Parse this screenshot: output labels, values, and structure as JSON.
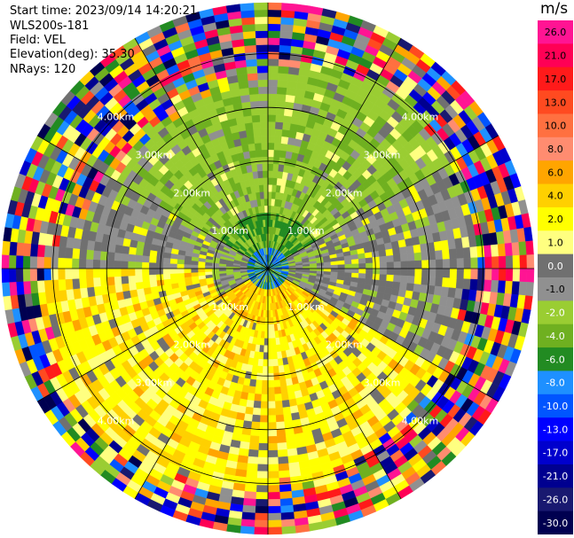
{
  "info": {
    "start_time": "Start time: 2023/09/14 14:20:21",
    "instrument": "WLS200s-181",
    "field": "Field: VEL",
    "elevation": "Elevation(deg): 35.30",
    "nrays": "NRays: 120"
  },
  "chart_data": {
    "type": "heatmap",
    "projection": "polar-ppi",
    "rays": 120,
    "rings": [
      {
        "range_km": 1.0,
        "label": "1.00km"
      },
      {
        "range_km": 2.0,
        "label": "2.00km"
      },
      {
        "range_km": 3.0,
        "label": "3.00km"
      },
      {
        "range_km": 4.0,
        "label": "4.00km"
      }
    ],
    "max_range_km": 4.95,
    "spokes_deg": [
      0,
      30,
      60,
      90,
      120,
      150,
      180,
      210,
      240,
      270,
      300,
      330
    ],
    "colorbar": {
      "unit": "m/s",
      "ticks": [
        "26.0",
        "21.0",
        "17.0",
        "13.0",
        "10.0",
        "8.0",
        "6.0",
        "4.0",
        "2.0",
        "1.0",
        "0.0",
        "-1.0",
        "-2.0",
        "-4.0",
        "-6.0",
        "-8.0",
        "-10.0",
        "-13.0",
        "-17.0",
        "-21.0",
        "-26.0",
        "-30.0"
      ],
      "colors": [
        "#ff1493",
        "#ff0055",
        "#ff1a1a",
        "#ff4a20",
        "#ff7040",
        "#ff8c70",
        "#ffa500",
        "#ffd000",
        "#ffff00",
        "#ffff80",
        "#707070",
        "#909090",
        "#9acd32",
        "#6fb020",
        "#228b22",
        "#1e90ff",
        "#0055ff",
        "#0000ff",
        "#0000cd",
        "#000090",
        "#191970",
        "#000050"
      ]
    }
  }
}
